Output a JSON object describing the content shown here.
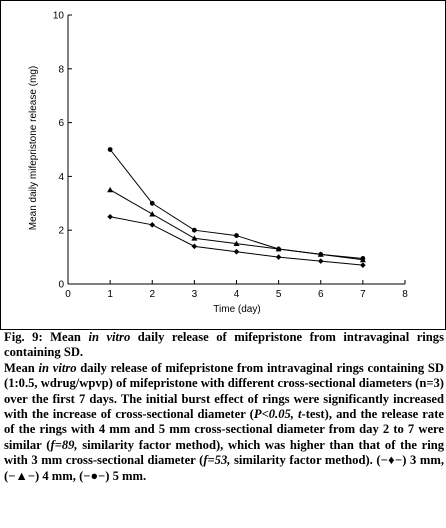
{
  "chart_data": {
    "type": "line",
    "title": "",
    "xlabel": "Time (day)",
    "ylabel": "Mean daily mifepristone release (mg)",
    "xlim": [
      0,
      8
    ],
    "ylim": [
      0,
      10
    ],
    "x_ticks": [
      "0",
      "1",
      "2",
      "3",
      "4",
      "5",
      "6",
      "7",
      "8"
    ],
    "y_ticks": [
      "0",
      "2",
      "4",
      "6",
      "8",
      "10"
    ],
    "grid": false,
    "legend": "none",
    "x": [
      1,
      2,
      3,
      4,
      5,
      6,
      7
    ],
    "series": [
      {
        "marker": "diamond",
        "values": [
          2.5,
          2.2,
          1.4,
          1.2,
          1.0,
          0.85,
          0.7
        ]
      },
      {
        "marker": "triangle",
        "values": [
          3.5,
          2.6,
          1.7,
          1.5,
          1.3,
          1.1,
          0.9
        ]
      },
      {
        "marker": "circle",
        "values": [
          5.0,
          3.0,
          2.0,
          1.8,
          1.3,
          1.1,
          0.95
        ]
      }
    ]
  },
  "caption": {
    "fig_label": "Fig. 9:",
    "title_a": "Mean",
    "title_in_vitro": "in vitro",
    "title_b": "daily release of mifepristone from intravaginal rings containing SD.",
    "p1": "Mean",
    "p2": "in vitro",
    "p3": "daily release of mifepristone from intravaginal rings containing SD (1:0.5, wdrug/wpvp) of mifepristone with different cross-sectional diameters (n=3) over the first 7 days. The initial burst effect of rings were significantly increased with the increase of cross-sectional diameter (",
    "p4": "P<0.05, t",
    "p5": "-test), and the release rate of the rings with 4 mm and 5 mm cross-sectional diameter from day 2 to 7 were similar (",
    "p6": "f=89,",
    "p7": "similarity factor method), which was higher than that of the ring with 3 mm cross-sectional diameter (",
    "p8": "f=53,",
    "p9": "similarity factor method). (−♦−) 3 mm, (−▲−) 4 mm, (−●−) 5 mm."
  }
}
